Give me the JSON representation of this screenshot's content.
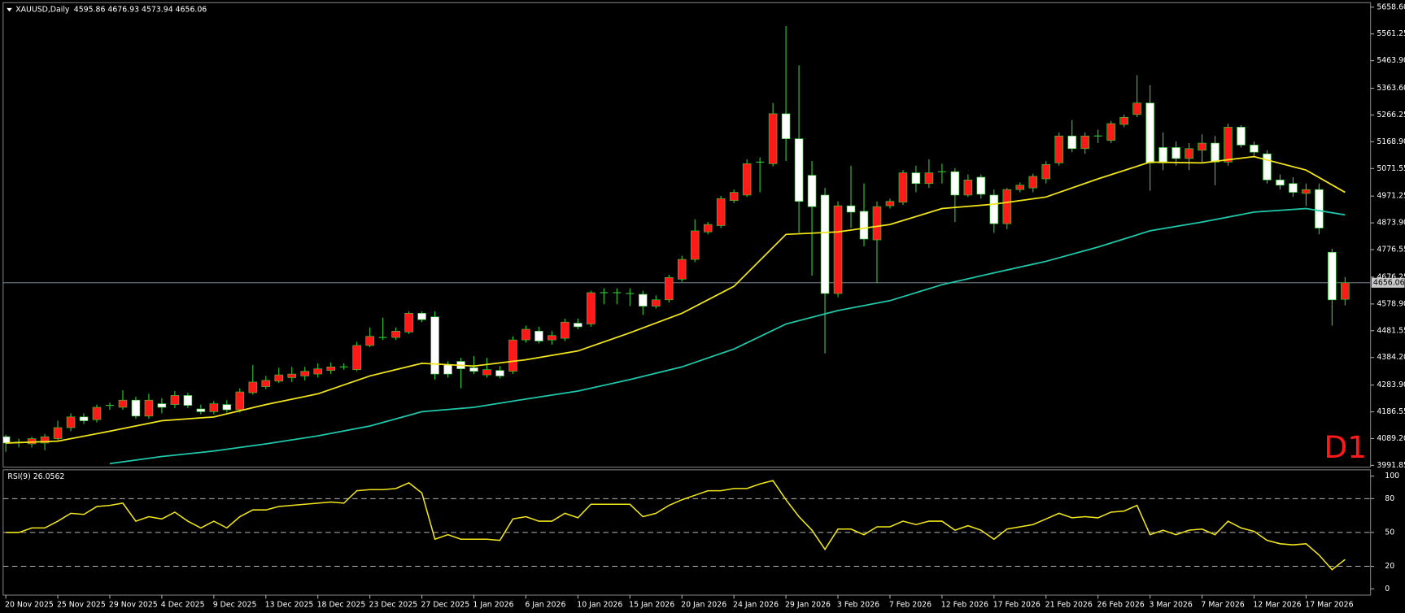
{
  "chart_data": {
    "type": "candlestick",
    "symbol": "XAUUSD,Daily",
    "header_values": "4595.86 4676.93 4573.94 4656.06",
    "timeframe_label": "D1",
    "bull_color": "#ff1a1a",
    "bear_color": "#ffffff",
    "doji_color": "#33cc33",
    "wick_color": "#33cc33",
    "categories": [
      "20 Nov 2025",
      null,
      null,
      null,
      "25 Nov 2025",
      null,
      null,
      null,
      "29 Nov 2025",
      null,
      null,
      null,
      "4 Dec 2025",
      null,
      null,
      null,
      "9 Dec 2025",
      null,
      null,
      null,
      "13 Dec 2025",
      null,
      null,
      null,
      "18 Dec 2025",
      null,
      null,
      null,
      "23 Dec 2025",
      null,
      null,
      null,
      "27 Dec 2025",
      null,
      null,
      null,
      "1 Jan 2026",
      null,
      null,
      null,
      "6 Jan 2026",
      null,
      null,
      null,
      "10 Jan 2026",
      null,
      null,
      null,
      "15 Jan 2026",
      null,
      null,
      null,
      "20 Jan 2026",
      null,
      null,
      null,
      "24 Jan 2026",
      null,
      null,
      null,
      "29 Jan 2026",
      null,
      null,
      null,
      "3 Feb 2026",
      null,
      null,
      null,
      "7 Feb 2026",
      null,
      null,
      null,
      "12 Feb 2026",
      null,
      null,
      null,
      "17 Feb 2026",
      null,
      null,
      null,
      "21 Feb 2026",
      null,
      null,
      null,
      "26 Feb 2026",
      null,
      null,
      null,
      "3 Mar 2026",
      null,
      null,
      null,
      "7 Mar 2026",
      null,
      null,
      null,
      "12 Mar 2026",
      null,
      null,
      null,
      "17 Mar 2026",
      null,
      null,
      null
    ],
    "open": [
      4096,
      4076,
      4070,
      4073,
      4089,
      4129,
      4168,
      4158,
      4210,
      4203,
      4229,
      4171,
      4216,
      4213,
      4246,
      4197,
      4187,
      4213,
      4194,
      4256,
      4278,
      4298,
      4311,
      4317,
      4324,
      4337,
      4350,
      4340,
      4428,
      4457,
      4457,
      4477,
      4545,
      4532,
      4357,
      4370,
      4347,
      4321,
      4337,
      4334,
      4448,
      4480,
      4448,
      4454,
      4509,
      4506,
      4620,
      4620,
      4617,
      4614,
      4571,
      4594,
      4669,
      4741,
      4841,
      4864,
      4955,
      4975,
      5095,
      5089,
      5271,
      5180,
      5047,
      4975,
      4617,
      4936,
      4916,
      4812,
      4936,
      4949,
      5056,
      5017,
      5060,
      5060,
      4975,
      5040,
      4975,
      4871,
      4995,
      5001,
      5034,
      5092,
      5190,
      5144,
      5190,
      5174,
      5232,
      5268,
      5310,
      5148,
      5148,
      5108,
      5138,
      5164,
      5095,
      5222,
      5157,
      5125,
      5030,
      5017,
      4981,
      4995,
      4767,
      4595.86
    ],
    "high": [
      4103,
      4089,
      4096,
      4106,
      4154,
      4181,
      4181,
      4213,
      4220,
      4265,
      4242,
      4252,
      4236,
      4262,
      4256,
      4213,
      4226,
      4229,
      4272,
      4357,
      4317,
      4347,
      4350,
      4350,
      4363,
      4366,
      4363,
      4441,
      4493,
      4529,
      4493,
      4552,
      4552,
      4552,
      4370,
      4383,
      4389,
      4383,
      4353,
      4461,
      4500,
      4496,
      4480,
      4526,
      4526,
      4627,
      4636,
      4636,
      4636,
      4627,
      4610,
      4685,
      4754,
      4887,
      4877,
      4972,
      4995,
      5105,
      5112,
      5310,
      5590,
      5447,
      5099,
      5001,
      4952,
      5082,
      5017,
      4952,
      4962,
      5066,
      5082,
      5105,
      5089,
      5073,
      5050,
      5050,
      4995,
      5001,
      5021,
      5053,
      5099,
      5203,
      5248,
      5203,
      5213,
      5245,
      5268,
      5411,
      5375,
      5203,
      5170,
      5164,
      5196,
      5190,
      5235,
      5229,
      5170,
      5138,
      5050,
      5040,
      5017,
      5017,
      4780,
      4676.93
    ],
    "low": [
      4041,
      4057,
      4057,
      4047,
      4083,
      4116,
      4142,
      4148,
      4194,
      4194,
      4161,
      4161,
      4181,
      4200,
      4200,
      4177,
      4177,
      4184,
      4184,
      4249,
      4269,
      4291,
      4295,
      4301,
      4311,
      4324,
      4340,
      4334,
      4422,
      4448,
      4448,
      4470,
      4513,
      4304,
      4311,
      4272,
      4324,
      4311,
      4308,
      4324,
      4438,
      4435,
      4431,
      4444,
      4487,
      4496,
      4578,
      4578,
      4571,
      4539,
      4562,
      4584,
      4659,
      4731,
      4832,
      4855,
      4946,
      4968,
      4985,
      5079,
      5099,
      4838,
      4682,
      4399,
      4604,
      4855,
      4789,
      4656,
      4926,
      4939,
      4985,
      5001,
      5017,
      4877,
      4968,
      4962,
      4838,
      4851,
      4985,
      4985,
      5017,
      5082,
      5131,
      5125,
      5164,
      5164,
      5222,
      5258,
      4991,
      5066,
      5082,
      5066,
      5092,
      5011,
      5082,
      5148,
      5115,
      5017,
      4995,
      4968,
      4936,
      4832,
      4500,
      4573.94
    ],
    "close": [
      4073,
      4076,
      4089,
      4096,
      4129,
      4168,
      4154,
      4203,
      4210,
      4229,
      4171,
      4229,
      4203,
      4246,
      4210,
      4187,
      4216,
      4194,
      4259,
      4295,
      4301,
      4321,
      4324,
      4334,
      4343,
      4350,
      4350,
      4428,
      4461,
      4457,
      4480,
      4545,
      4522,
      4324,
      4324,
      4343,
      4334,
      4340,
      4317,
      4448,
      4487,
      4444,
      4464,
      4513,
      4496,
      4620,
      4620,
      4620,
      4617,
      4571,
      4594,
      4675,
      4741,
      4845,
      4868,
      4962,
      4985,
      5089,
      5095,
      5271,
      5180,
      4952,
      4933,
      4617,
      4936,
      4913,
      4815,
      4933,
      4952,
      5056,
      5017,
      5056,
      5060,
      4975,
      5030,
      4978,
      4871,
      4995,
      5011,
      5043,
      5086,
      5190,
      5144,
      5190,
      5190,
      5235,
      5258,
      5310,
      5092,
      5092,
      5108,
      5144,
      5164,
      5095,
      5222,
      5157,
      5131,
      5030,
      5011,
      4985,
      4995,
      4855,
      4594,
      4656.06
    ],
    "series": [
      {
        "color": "#f2e61a",
        "x": [
          0,
          4,
          8,
          12,
          16,
          20,
          24,
          28,
          32,
          36,
          40,
          44,
          48,
          52,
          56,
          60,
          64,
          68,
          72,
          76,
          80,
          84,
          88,
          92,
          96,
          100,
          103
        ],
        "values": [
          4073,
          4080,
          4116,
          4154,
          4168,
          4213,
          4252,
          4317,
          4363,
          4353,
          4376,
          4408,
          4474,
          4545,
          4643,
          4832,
          4841,
          4868,
          4926,
          4942,
          4968,
          5034,
          5095,
          5092,
          5115,
          5066,
          4985
        ]
      },
      {
        "color": "#1ec8aa",
        "x": [
          8,
          12,
          16,
          20,
          24,
          28,
          32,
          36,
          40,
          44,
          48,
          52,
          56,
          60,
          64,
          68,
          72,
          76,
          80,
          84,
          88,
          92,
          96,
          100,
          103
        ],
        "values": [
          3998,
          4024,
          4044,
          4070,
          4099,
          4135,
          4187,
          4203,
          4233,
          4262,
          4304,
          4350,
          4415,
          4506,
          4555,
          4591,
          4649,
          4692,
          4734,
          4786,
          4845,
          4877,
          4913,
          4926,
          4903
        ]
      }
    ],
    "ylim": [
      3991.85,
      5658.6
    ],
    "yticks": [
      {
        "value": 5658.6,
        "label": "5658.60"
      },
      5561.25,
      {
        "value": 5463.9,
        "label": "5463.90"
      },
      {
        "value": 5363.6,
        "label": "5363.60"
      },
      5266.25,
      {
        "value": 5168.9,
        "label": "5168.90"
      },
      5071.55,
      4971.25,
      {
        "value": 4873.9,
        "label": "4873.90"
      },
      4776.55,
      4676.25,
      {
        "value": 4578.9,
        "label": "4578.90"
      },
      4481.55,
      {
        "value": 4384.2,
        "label": "4384.20"
      },
      {
        "value": 4283.9,
        "label": "4283.90"
      },
      4186.55,
      {
        "value": 4089.2,
        "label": "4089.20"
      },
      3991.85
    ],
    "current_price": 4656.06,
    "rsi": {
      "label": "RSI(9) 26.0562",
      "color": "#f2e61a",
      "values": [
        50,
        50,
        54,
        54,
        60,
        67,
        66,
        73,
        74,
        76,
        60,
        64,
        62,
        68,
        60,
        54,
        60,
        54,
        64,
        70,
        70,
        73,
        74,
        75,
        76,
        77,
        76,
        87,
        88,
        88,
        89,
        94,
        85,
        44,
        48,
        44,
        44,
        44,
        43,
        62,
        64,
        60,
        60,
        67,
        63,
        75,
        75,
        75,
        75,
        64,
        67,
        74,
        79,
        83,
        87,
        87,
        89,
        89,
        93,
        96,
        79,
        64,
        52,
        35,
        53,
        53,
        48,
        55,
        55,
        60,
        57,
        60,
        60,
        52,
        56,
        52,
        44,
        53,
        55,
        57,
        62,
        67,
        63,
        64,
        63,
        68,
        69,
        74,
        48,
        52,
        48,
        52,
        53,
        48,
        60,
        54,
        51,
        43,
        40,
        39,
        40,
        30,
        17,
        26.0562
      ],
      "ylim": [
        0,
        100
      ],
      "yticks": [
        100,
        80,
        50,
        20,
        0
      ],
      "levels": [
        80,
        50,
        20
      ]
    }
  }
}
